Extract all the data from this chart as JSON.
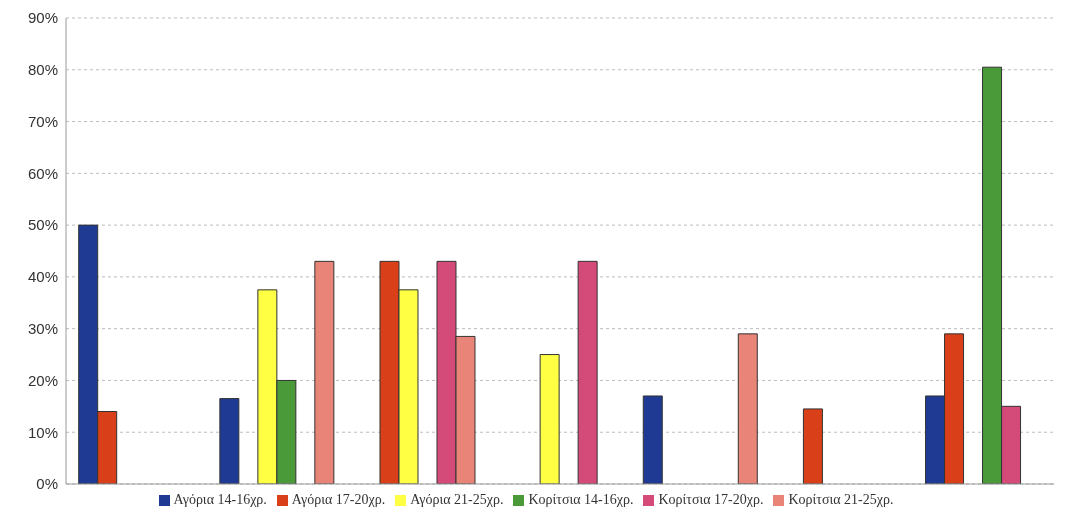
{
  "chart_data": {
    "type": "bar",
    "categories": [
      null,
      null,
      null,
      null,
      null,
      null,
      null
    ],
    "series": [
      {
        "name": "Αγόρια 14-16χρ.",
        "color": "#1f3a93",
        "values": [
          50,
          16.5,
          null,
          null,
          17,
          null,
          17
        ]
      },
      {
        "name": "Αγόρια 17-20χρ.",
        "color": "#d9401a",
        "values": [
          14,
          null,
          43,
          null,
          null,
          14.5,
          29
        ]
      },
      {
        "name": "Αγόρια 21-25χρ.",
        "color": "#ffff44",
        "values": [
          null,
          37.5,
          37.5,
          25,
          null,
          null,
          null
        ]
      },
      {
        "name": "Κορίτσια 14-16χρ.",
        "color": "#4a9a3a",
        "values": [
          null,
          20,
          null,
          null,
          null,
          null,
          80.5
        ]
      },
      {
        "name": "Κορίτσια 17-20χρ.",
        "color": "#d44a78",
        "values": [
          null,
          null,
          43,
          43,
          null,
          null,
          15
        ]
      },
      {
        "name": "Κορίτσια 21-25χρ.",
        "color": "#e88478",
        "values": [
          null,
          43,
          28.5,
          null,
          29,
          null,
          null
        ]
      }
    ],
    "ylim": [
      0,
      90
    ],
    "yticks": [
      {
        "value": 0,
        "label": "0%"
      },
      {
        "value": 10,
        "label": "10%"
      },
      {
        "value": 20,
        "label": "20%"
      },
      {
        "value": 30,
        "label": "30%"
      },
      {
        "value": 40,
        "label": "40%"
      },
      {
        "value": 50,
        "label": "50%"
      },
      {
        "value": 60,
        "label": "60%"
      },
      {
        "value": 70,
        "label": "70%"
      },
      {
        "value": 80,
        "label": "80%"
      },
      {
        "value": 90,
        "label": "90%"
      }
    ],
    "grid": "y",
    "legend": "bottom"
  }
}
